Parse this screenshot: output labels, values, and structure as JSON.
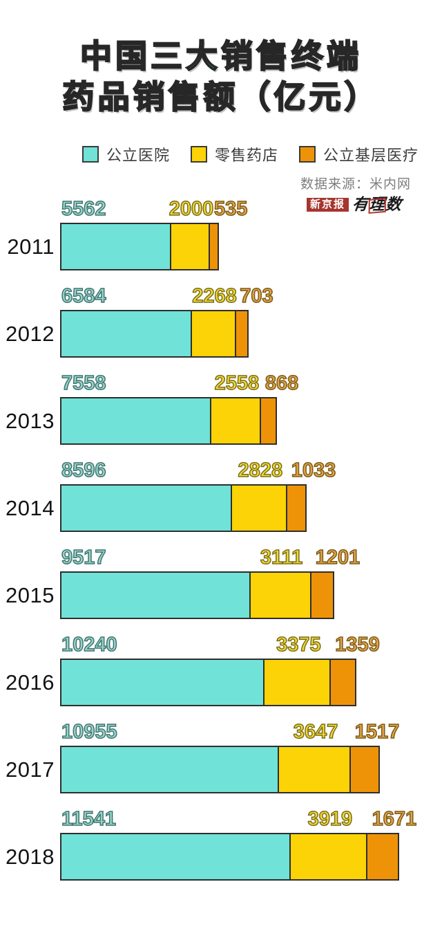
{
  "title": {
    "line1": "中国三大销售终端",
    "line2": "药品销售额（亿元）"
  },
  "source_note": "数据来源：米内网",
  "logo": {
    "brand": "新京报",
    "column": "有理数"
  },
  "chart_data": {
    "type": "bar",
    "orientation": "horizontal",
    "stacked": true,
    "title": "中国三大销售终端药品销售额（亿元）",
    "unit": "亿元",
    "categories": [
      "2011",
      "2012",
      "2013",
      "2014",
      "2015",
      "2016",
      "2017",
      "2018"
    ],
    "series": [
      {
        "name": "公立医院",
        "color": "#70E2D8",
        "label_fill": "#9AD4CB",
        "label_stroke": "#3E7570",
        "values": [
          5562,
          6584,
          7558,
          8596,
          9517,
          10240,
          10955,
          11541
        ]
      },
      {
        "name": "零售药店",
        "color": "#FBD306",
        "label_fill": "#F3D73C",
        "label_stroke": "#7A6F15",
        "values": [
          2000,
          2268,
          2558,
          2828,
          3111,
          3375,
          3647,
          3919
        ]
      },
      {
        "name": "公立基层医疗",
        "color": "#EE9307",
        "label_fill": "#DFA54B",
        "label_stroke": "#7D5A16",
        "values": [
          535,
          703,
          868,
          1033,
          1201,
          1359,
          1517,
          1671
        ]
      }
    ],
    "xlim": [
      0,
      17131
    ],
    "value_labels": true,
    "grid": false,
    "legend_position": "top"
  }
}
